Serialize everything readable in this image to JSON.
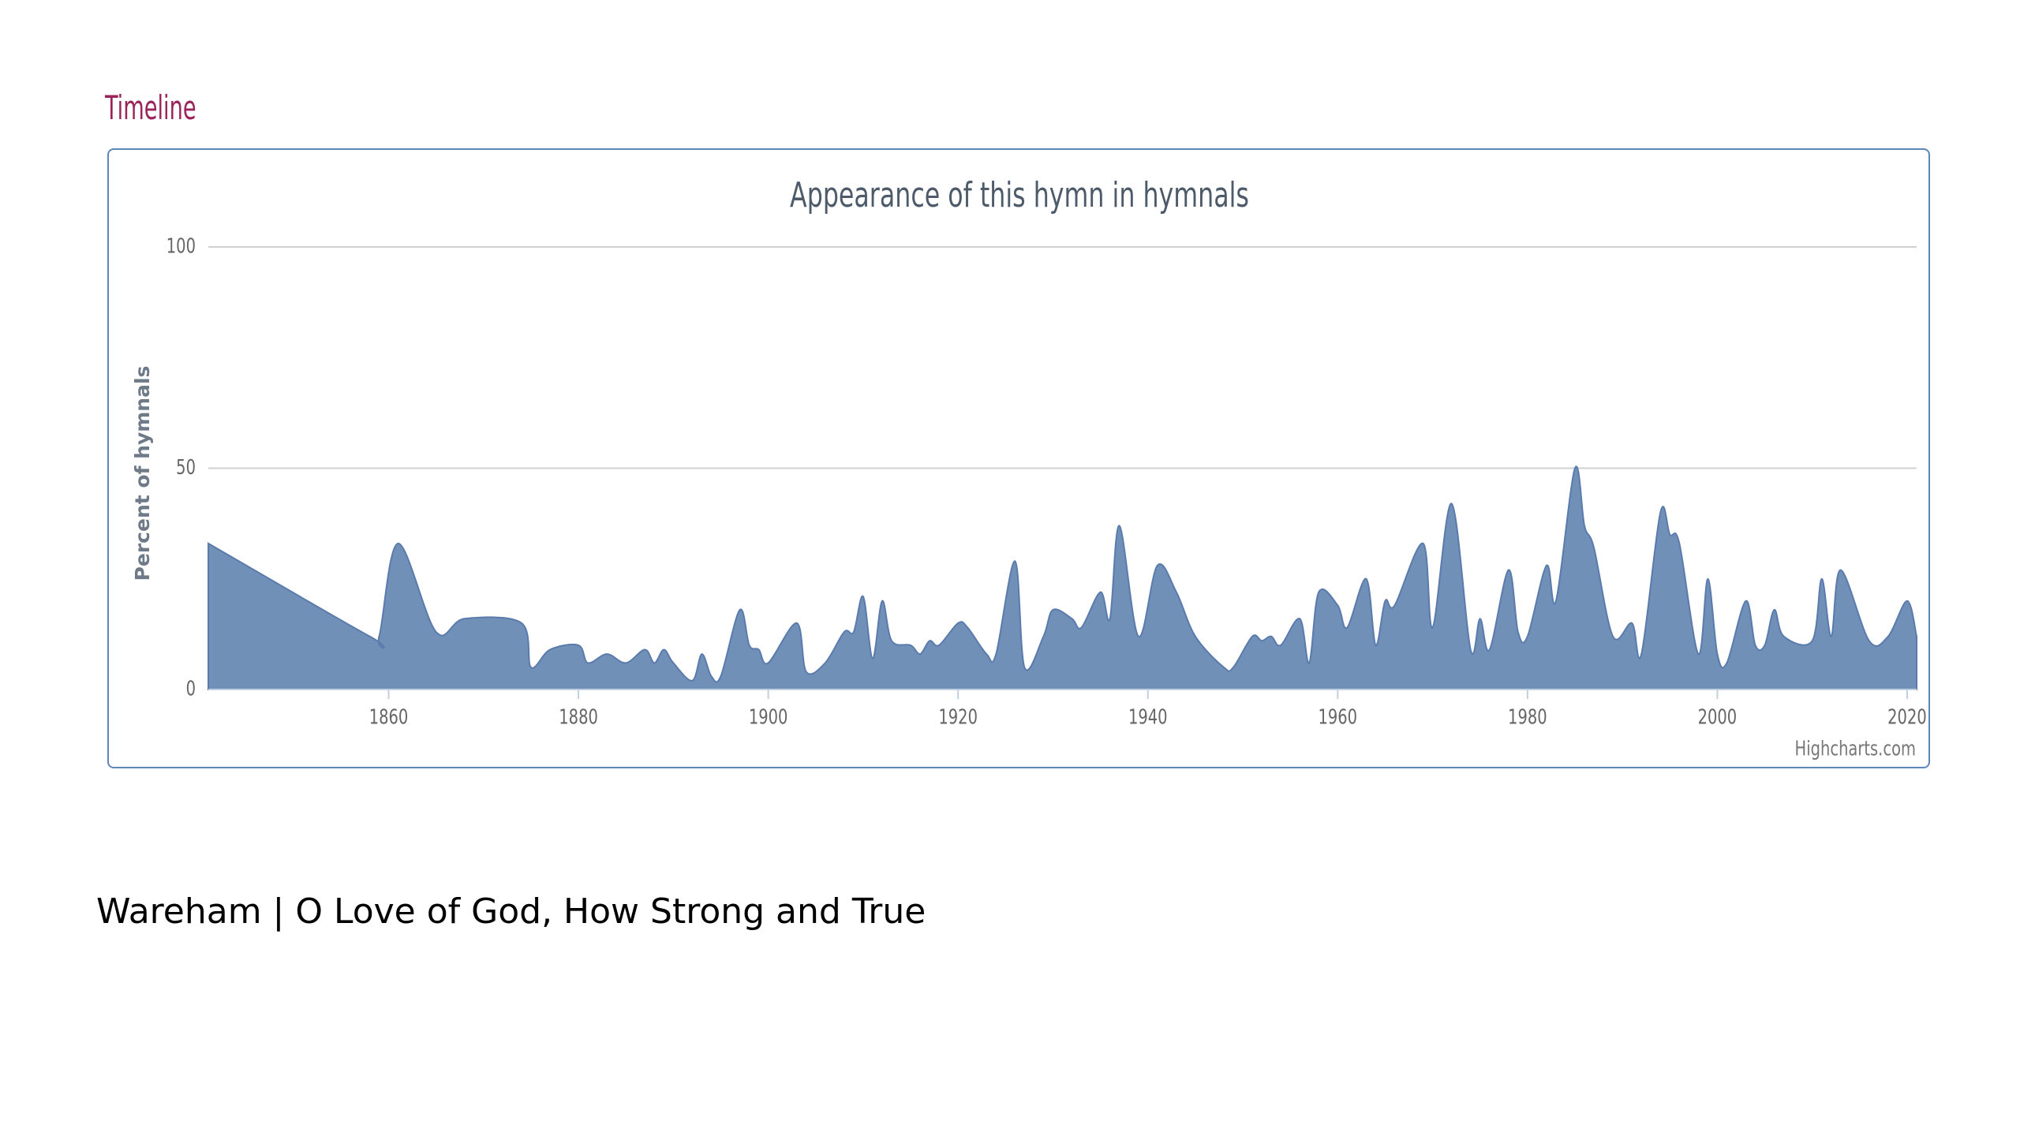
{
  "heading": "Timeline",
  "chart_data": {
    "type": "areaspline",
    "title": "Appearance of this hymn in hymnals",
    "y_label": "Percent of hymnals",
    "credit": "Highcharts.com",
    "color": "#7090b8",
    "line_color": "#5a7bab",
    "grid": true,
    "xlim": [
      1841,
      2021
    ],
    "ylim": [
      0,
      100
    ],
    "xticks": [
      1860,
      1880,
      1900,
      1920,
      1940,
      1960,
      1980,
      2000,
      2020
    ],
    "yticks": [
      0,
      50,
      100
    ],
    "x": [
      1841,
      1858,
      1859,
      1861,
      1865,
      1868,
      1874,
      1875,
      1877,
      1880,
      1881,
      1883,
      1885,
      1887,
      1888,
      1889,
      1890,
      1892,
      1893,
      1894,
      1895,
      1897,
      1898,
      1899,
      1900,
      1903,
      1904,
      1906,
      1908,
      1909,
      1910,
      1911,
      1912,
      1913,
      1915,
      1916,
      1917,
      1918,
      1920,
      1921,
      1923,
      1924,
      1926,
      1927,
      1929,
      1930,
      1932,
      1933,
      1935,
      1936,
      1937,
      1939,
      1941,
      1943,
      1945,
      1948,
      1949,
      1951,
      1952,
      1953,
      1954,
      1956,
      1957,
      1958,
      1960,
      1961,
      1963,
      1964,
      1965,
      1966,
      1969,
      1970,
      1972,
      1974,
      1975,
      1976,
      1978,
      1979,
      1980,
      1982,
      1983,
      1985,
      1986,
      1987,
      1989,
      1991,
      1992,
      1994,
      1995,
      1996,
      1998,
      1999,
      2000,
      2001,
      2003,
      2004,
      2005,
      2006,
      2007,
      2010,
      2011,
      2012,
      2013,
      2016,
      2018,
      2020,
      2021
    ],
    "values": [
      33,
      12,
      12,
      33,
      13,
      16,
      15,
      5,
      9,
      10,
      6,
      8,
      6,
      9,
      6,
      9,
      6,
      2,
      8,
      3,
      3,
      18,
      10,
      9,
      6,
      15,
      4,
      6,
      13,
      13,
      21,
      7,
      20,
      11,
      10,
      8,
      11,
      10,
      15,
      14,
      8,
      8,
      29,
      5,
      12,
      18,
      16,
      14,
      22,
      16,
      37,
      12,
      28,
      22,
      12,
      5,
      5,
      12,
      11,
      12,
      10,
      16,
      6,
      22,
      19,
      14,
      25,
      10,
      20,
      19,
      33,
      14,
      42,
      9,
      16,
      9,
      27,
      13,
      12,
      28,
      20,
      50,
      37,
      32,
      12,
      15,
      8,
      40,
      35,
      33,
      8,
      25,
      8,
      6,
      20,
      10,
      10,
      18,
      12,
      11,
      25,
      12,
      27,
      11,
      12,
      20,
      12
    ]
  },
  "caption": "Wareham | O Love of God, How Strong and True"
}
